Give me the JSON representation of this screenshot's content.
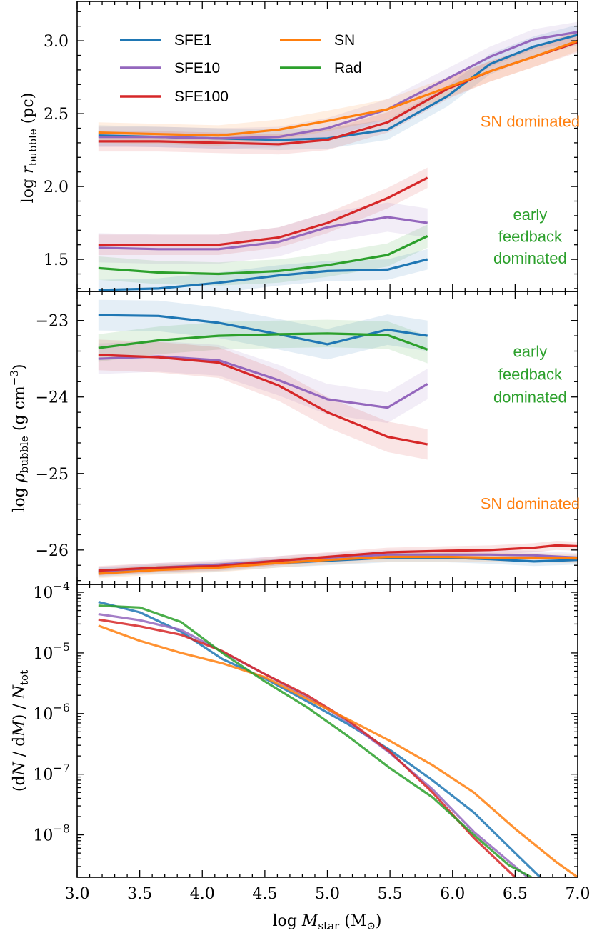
{
  "colors": {
    "SFE1": "#1f77b4",
    "SFE10": "#9467bd",
    "SFE100": "#d62728",
    "SN": "#ff7f0e",
    "Rad": "#2ca02c"
  },
  "legend": [
    "SFE1",
    "SFE10",
    "SFE100",
    "SN",
    "Rad"
  ],
  "chart_data": [
    {
      "type": "line",
      "ylabel": "log r_bubble (pc)",
      "xlim": [
        3.0,
        7.0
      ],
      "ylim": [
        1.28,
        3.27
      ],
      "yticks": [
        1.5,
        2.0,
        2.5,
        3.0
      ],
      "ytick_labels": [
        "1.5",
        "2.0",
        "2.5",
        "3.0"
      ],
      "legend": "upper left, 2 columns",
      "annotations": [
        {
          "text": "SN dominated",
          "color": "#ff7f0e",
          "x": 6.62,
          "y": 2.45
        },
        {
          "text": "early",
          "color": "#2ca02c",
          "x": 6.62,
          "y": 1.81
        },
        {
          "text": "feedback",
          "color": "#2ca02c",
          "x": 6.62,
          "y": 1.66
        },
        {
          "text": "dominated",
          "color": "#2ca02c",
          "x": 6.62,
          "y": 1.51
        }
      ],
      "series": [
        {
          "name": "SFE1",
          "color": "#1f77b4",
          "x": [
            3.17,
            3.65,
            4.13,
            4.61,
            5.0,
            5.48,
            5.96,
            6.3,
            6.65,
            7.0
          ],
          "y": [
            2.35,
            2.34,
            2.33,
            2.32,
            2.33,
            2.39,
            2.62,
            2.84,
            2.96,
            3.04
          ],
          "band": 0.07
        },
        {
          "name": "SFE10",
          "color": "#9467bd",
          "x": [
            3.17,
            3.65,
            4.13,
            4.61,
            5.0,
            5.48,
            5.96,
            6.3,
            6.65,
            7.0
          ],
          "y": [
            2.34,
            2.34,
            2.33,
            2.34,
            2.4,
            2.53,
            2.74,
            2.89,
            3.01,
            3.06
          ],
          "band": 0.07
        },
        {
          "name": "SFE100",
          "color": "#d62728",
          "x": [
            3.17,
            3.65,
            4.13,
            4.61,
            5.0,
            5.48,
            5.96,
            6.3,
            6.65,
            7.0
          ],
          "y": [
            2.31,
            2.31,
            2.3,
            2.29,
            2.32,
            2.44,
            2.67,
            2.79,
            2.89,
            2.99
          ],
          "band": 0.07
        },
        {
          "name": "SN",
          "color": "#ff7f0e",
          "x": [
            3.17,
            3.65,
            4.13,
            4.61,
            5.0,
            5.48,
            5.96,
            6.3,
            6.65,
            7.0
          ],
          "y": [
            2.37,
            2.36,
            2.35,
            2.39,
            2.45,
            2.53,
            2.68,
            2.79,
            2.89,
            3.0
          ],
          "band": 0.07
        },
        {
          "name": "SFE100",
          "color": "#d62728",
          "legend": false,
          "x": [
            3.17,
            3.65,
            4.13,
            4.61,
            5.0,
            5.48,
            5.8
          ],
          "y": [
            1.6,
            1.6,
            1.6,
            1.65,
            1.75,
            1.92,
            2.06
          ],
          "band": 0.07
        },
        {
          "name": "SFE10",
          "color": "#9467bd",
          "legend": false,
          "x": [
            3.17,
            3.65,
            4.13,
            4.61,
            5.0,
            5.48,
            5.8
          ],
          "y": [
            1.58,
            1.57,
            1.57,
            1.62,
            1.72,
            1.79,
            1.75
          ],
          "band": 0.1
        },
        {
          "name": "Rad",
          "color": "#2ca02c",
          "x": [
            3.17,
            3.65,
            4.13,
            4.61,
            5.0,
            5.48,
            5.8
          ],
          "y": [
            1.44,
            1.41,
            1.4,
            1.42,
            1.46,
            1.53,
            1.66
          ],
          "band": 0.08
        },
        {
          "name": "SFE1",
          "color": "#1f77b4",
          "legend": false,
          "x": [
            3.17,
            3.65,
            4.13,
            4.61,
            5.0,
            5.48,
            5.8
          ],
          "y": [
            1.29,
            1.3,
            1.34,
            1.39,
            1.42,
            1.43,
            1.5
          ],
          "band": 0.07
        }
      ]
    },
    {
      "type": "line",
      "ylabel": "log ρ_bubble (g cm^-3)",
      "xlim": [
        3.0,
        7.0
      ],
      "ylim": [
        -26.45,
        -22.62
      ],
      "yticks": [
        -26,
        -25,
        -24,
        -23
      ],
      "ytick_labels": [
        "−26",
        "−25",
        "−24",
        "−23"
      ],
      "annotations": [
        {
          "text": "early",
          "color": "#2ca02c",
          "x": 6.62,
          "y": -23.4
        },
        {
          "text": "feedback",
          "color": "#2ca02c",
          "x": 6.62,
          "y": -23.7
        },
        {
          "text": "dominated",
          "color": "#2ca02c",
          "x": 6.62,
          "y": -24.0
        },
        {
          "text": "SN dominated",
          "color": "#ff7f0e",
          "x": 6.62,
          "y": -25.39
        }
      ],
      "series": [
        {
          "name": "SFE1",
          "color": "#1f77b4",
          "x": [
            3.17,
            3.65,
            4.13,
            4.61,
            5.0,
            5.48,
            5.8
          ],
          "y": [
            -22.93,
            -22.94,
            -23.03,
            -23.18,
            -23.31,
            -23.12,
            -23.2
          ],
          "band": 0.2
        },
        {
          "name": "Rad",
          "color": "#2ca02c",
          "x": [
            3.17,
            3.65,
            4.13,
            4.61,
            5.0,
            5.48,
            5.8
          ],
          "y": [
            -23.36,
            -23.26,
            -23.2,
            -23.18,
            -23.17,
            -23.19,
            -23.38
          ],
          "band": 0.18
        },
        {
          "name": "SFE10",
          "color": "#9467bd",
          "x": [
            3.17,
            3.65,
            4.13,
            4.61,
            5.0,
            5.48,
            5.8
          ],
          "y": [
            -23.5,
            -23.47,
            -23.52,
            -23.78,
            -24.03,
            -24.14,
            -23.83
          ],
          "band": 0.2
        },
        {
          "name": "SFE100",
          "color": "#d62728",
          "x": [
            3.17,
            3.65,
            4.13,
            4.61,
            5.0,
            5.48,
            5.8
          ],
          "y": [
            -23.45,
            -23.48,
            -23.55,
            -23.85,
            -24.2,
            -24.52,
            -24.62
          ],
          "band": 0.2
        },
        {
          "name": "SFE1",
          "color": "#1f77b4",
          "legend": false,
          "x": [
            3.17,
            3.65,
            4.13,
            4.61,
            5.0,
            5.48,
            5.96,
            6.3,
            6.65,
            7.0
          ],
          "y": [
            -26.29,
            -26.25,
            -26.22,
            -26.17,
            -26.14,
            -26.1,
            -26.1,
            -26.12,
            -26.15,
            -26.13
          ],
          "band": 0.06
        },
        {
          "name": "SFE10",
          "color": "#9467bd",
          "legend": false,
          "x": [
            3.17,
            3.65,
            4.13,
            4.61,
            5.0,
            5.48,
            5.96,
            6.3,
            6.65,
            7.0
          ],
          "y": [
            -26.28,
            -26.23,
            -26.19,
            -26.14,
            -26.1,
            -26.06,
            -26.06,
            -26.06,
            -26.07,
            -26.1
          ],
          "band": 0.06
        },
        {
          "name": "SFE100",
          "color": "#d62728",
          "legend": false,
          "x": [
            3.17,
            3.65,
            4.13,
            4.61,
            5.0,
            5.48,
            5.96,
            6.3,
            6.65,
            6.83,
            7.0
          ],
          "y": [
            -26.27,
            -26.23,
            -26.21,
            -26.14,
            -26.09,
            -26.03,
            -26.01,
            -26.0,
            -25.97,
            -25.94,
            -25.95
          ],
          "band": 0.06
        },
        {
          "name": "SN",
          "color": "#ff7f0e",
          "legend": false,
          "x": [
            3.17,
            3.65,
            4.13,
            4.61,
            5.0,
            5.48,
            5.96,
            6.3,
            6.65,
            7.0
          ],
          "y": [
            -26.31,
            -26.26,
            -26.23,
            -26.17,
            -26.13,
            -26.09,
            -26.09,
            -26.1,
            -26.1,
            -26.11
          ],
          "band": 0.06
        }
      ]
    },
    {
      "type": "line",
      "ylabel": "(dN / dM) / N_tot",
      "xlabel": "log M_star (M⊙)",
      "yscale": "log",
      "xlim": [
        3.0,
        7.0
      ],
      "ylim_log10": [
        -8.7,
        -3.87
      ],
      "yticks_log10": [
        -8,
        -7,
        -6,
        -5,
        -4
      ],
      "xticks": [
        3.0,
        3.5,
        4.0,
        4.5,
        5.0,
        5.5,
        6.0,
        6.5,
        7.0
      ],
      "xtick_labels": [
        "3.0",
        "3.5",
        "4.0",
        "4.5",
        "5.0",
        "5.5",
        "6.0",
        "6.5",
        "7.0"
      ],
      "series": [
        {
          "name": "SFE1",
          "color": "#1f77b4",
          "x": [
            3.17,
            3.5,
            3.83,
            4.16,
            4.5,
            4.84,
            5.17,
            5.5,
            5.84,
            6.17,
            6.5,
            6.7
          ],
          "log10y": [
            -4.16,
            -4.33,
            -4.65,
            -5.1,
            -5.42,
            -5.8,
            -6.18,
            -6.6,
            -7.1,
            -7.63,
            -8.3,
            -8.7
          ]
        },
        {
          "name": "SFE10",
          "color": "#9467bd",
          "x": [
            3.17,
            3.5,
            3.83,
            4.16,
            4.5,
            4.84,
            5.17,
            5.5,
            5.84,
            6.17,
            6.4,
            6.6
          ],
          "log10y": [
            -4.36,
            -4.46,
            -4.62,
            -4.98,
            -5.35,
            -5.73,
            -6.14,
            -6.65,
            -7.25,
            -7.95,
            -8.35,
            -8.7
          ]
        },
        {
          "name": "SFE100",
          "color": "#d62728",
          "x": [
            3.17,
            3.5,
            3.83,
            4.16,
            4.5,
            4.84,
            5.17,
            5.5,
            5.84,
            6.17,
            6.5
          ],
          "log10y": [
            -4.45,
            -4.56,
            -4.7,
            -4.97,
            -5.35,
            -5.7,
            -6.12,
            -6.63,
            -7.3,
            -8.05,
            -8.7
          ]
        },
        {
          "name": "SN",
          "color": "#ff7f0e",
          "x": [
            3.17,
            3.5,
            3.83,
            4.16,
            4.5,
            4.84,
            5.17,
            5.5,
            5.84,
            6.17,
            6.5,
            6.83,
            7.0
          ],
          "log10y": [
            -4.55,
            -4.8,
            -5.0,
            -5.17,
            -5.4,
            -5.76,
            -6.1,
            -6.45,
            -6.85,
            -7.3,
            -7.9,
            -8.45,
            -8.7
          ]
        },
        {
          "name": "Rad",
          "color": "#2ca02c",
          "x": [
            3.17,
            3.5,
            3.83,
            4.16,
            4.5,
            4.84,
            5.17,
            5.5,
            5.84,
            6.17,
            6.45,
            6.63
          ],
          "log10y": [
            -4.22,
            -4.25,
            -4.49,
            -5.0,
            -5.47,
            -5.9,
            -6.38,
            -6.9,
            -7.38,
            -8.0,
            -8.5,
            -8.7
          ]
        }
      ]
    }
  ]
}
